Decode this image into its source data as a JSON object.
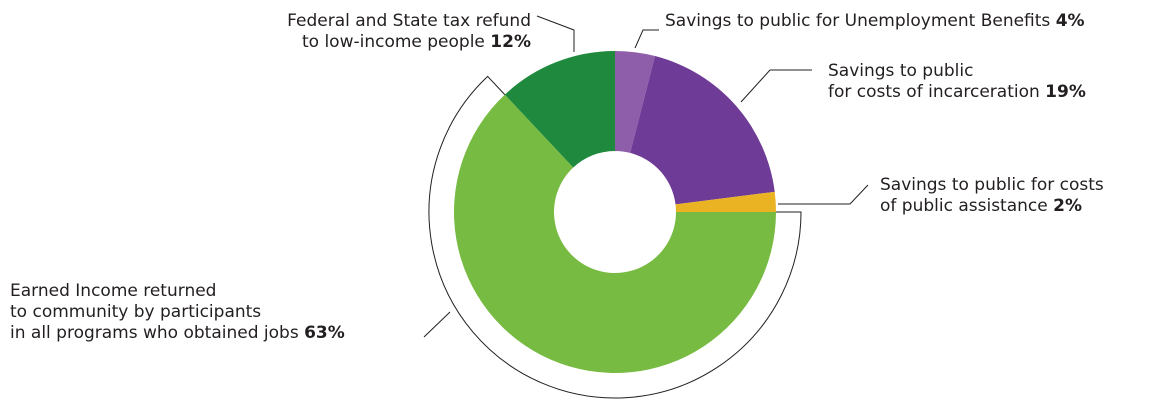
{
  "chart_data": {
    "type": "pie",
    "title": "",
    "donut": true,
    "start_angle_deg": 0,
    "direction": "clockwise",
    "legend": "none",
    "slices": [
      {
        "id": "unemployment",
        "label_lines": [
          "Savings to public for Unemployment Benefits"
        ],
        "pct_text": "4%",
        "value": 4,
        "color": "#8e5eab"
      },
      {
        "id": "incarceration",
        "label_lines": [
          "Savings to public",
          "for costs of incarceration"
        ],
        "pct_text": "19%",
        "value": 19,
        "color": "#6e3b96"
      },
      {
        "id": "assistance",
        "label_lines": [
          "Savings to public for costs",
          "of public assistance"
        ],
        "pct_text": "2%",
        "value": 2,
        "color": "#e9b323"
      },
      {
        "id": "earned",
        "label_lines": [
          "Earned Income returned",
          "to community by participants",
          "in all programs who obtained jobs"
        ],
        "pct_text": "63%",
        "value": 63,
        "color": "#78bb42"
      },
      {
        "id": "taxrefund",
        "label_lines": [
          "Federal and State tax refund",
          "to low-income people"
        ],
        "pct_text": "12%",
        "value": 12,
        "color": "#1f8a3d"
      }
    ]
  }
}
